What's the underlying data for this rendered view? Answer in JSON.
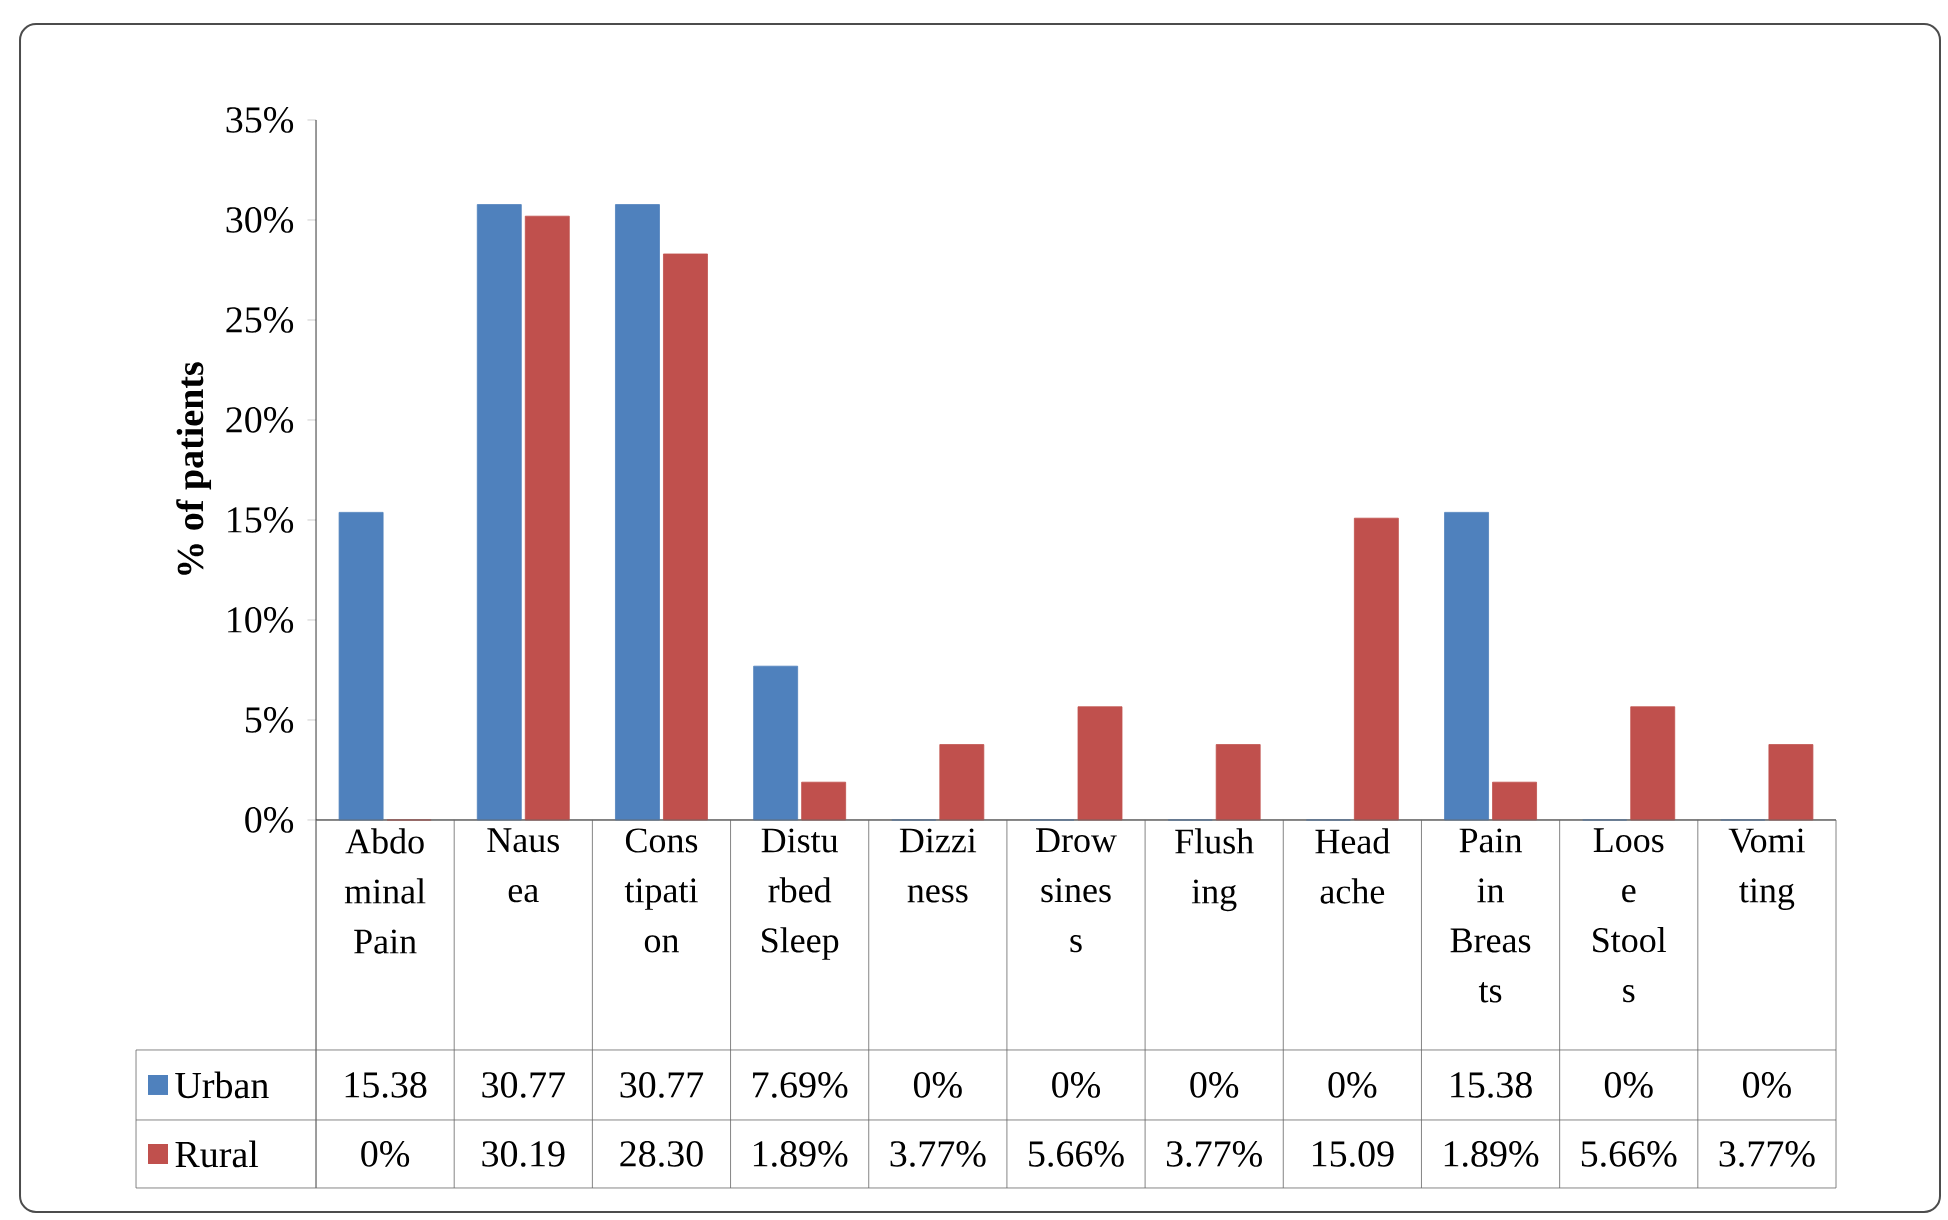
{
  "chart_data": {
    "type": "bar",
    "ylabel": "% of patients",
    "categories": [
      "Abdo minal Pain",
      "Naus ea",
      "Cons tipati on",
      "Distu rbed Sleep",
      "Dizzi ness",
      "Drow sines s",
      "Flush ing",
      "Head ache",
      "Pain in Breas ts",
      "Loos e Stool s",
      "Vomi ting"
    ],
    "series": [
      {
        "name": "Urban",
        "color": "#4f81bd",
        "values": [
          15.38,
          30.77,
          30.77,
          7.69,
          0,
          0,
          0,
          0,
          15.38,
          0,
          0
        ],
        "value_labels": [
          "15.38",
          "30.77",
          "30.77",
          "7.69%",
          "0%",
          "0%",
          "0%",
          "0%",
          "15.38",
          "0%",
          "0%"
        ]
      },
      {
        "name": "Rural",
        "color": "#c0504d",
        "values": [
          0,
          30.19,
          28.3,
          1.89,
          3.77,
          5.66,
          3.77,
          15.09,
          1.89,
          5.66,
          3.77
        ],
        "value_labels": [
          "0%",
          "30.19",
          "28.30",
          "1.89%",
          "3.77%",
          "5.66%",
          "3.77%",
          "15.09",
          "1.89%",
          "5.66%",
          "3.77%"
        ]
      }
    ],
    "ylim": [
      0,
      35
    ],
    "yticks": [
      {
        "value": 0,
        "label": "0%"
      },
      {
        "value": 5,
        "label": "5%"
      },
      {
        "value": 10,
        "label": "10%"
      },
      {
        "value": 15,
        "label": "15%"
      },
      {
        "value": 20,
        "label": "20%"
      },
      {
        "value": 25,
        "label": "25%"
      },
      {
        "value": 30,
        "label": "30%"
      },
      {
        "value": 35,
        "label": "35%"
      }
    ],
    "legend": "bottom"
  }
}
